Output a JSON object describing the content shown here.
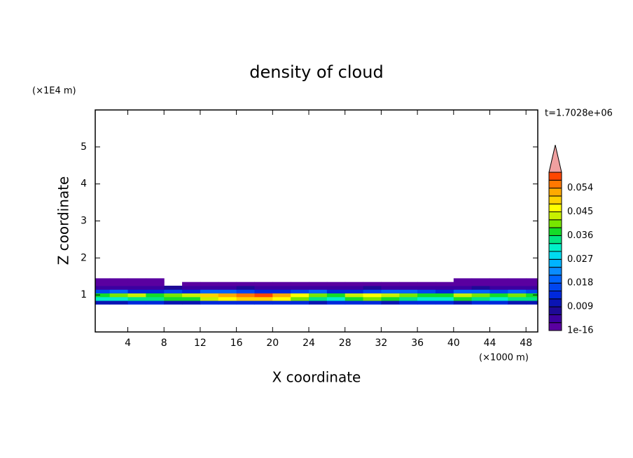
{
  "chart_data": {
    "type": "contour",
    "title": "density of cloud",
    "annotation": "t=1.7028e+06",
    "xlabel": "X coordinate",
    "ylabel": "Z coordinate",
    "x_unit": "(×1000 m)",
    "y_unit": "(×1E4 m)",
    "xlim": [
      0.4,
      49.3
    ],
    "ylim": [
      0,
      6
    ],
    "xticks": [
      4,
      8,
      12,
      16,
      20,
      24,
      28,
      32,
      36,
      40,
      44,
      48
    ],
    "yticks": [
      1,
      2,
      3,
      4,
      5
    ],
    "x": [
      1,
      3,
      5,
      7,
      9,
      11,
      13,
      15,
      17,
      19,
      21,
      23,
      25,
      27,
      29,
      31,
      33,
      35,
      37,
      39,
      41,
      43,
      45,
      47,
      49
    ],
    "z": [
      0.8,
      0.9,
      1.0,
      1.1,
      1.2,
      1.3,
      1.4
    ],
    "field": [
      [
        0.01,
        0.011,
        0.012,
        0.012,
        0.011,
        0.01,
        0.012,
        0.013,
        0.014,
        0.013,
        0.012,
        0.012,
        0.011,
        0.012,
        0.013,
        0.012,
        0.011,
        0.012,
        0.013,
        0.012,
        0.011,
        0.012,
        0.012,
        0.011,
        0.01
      ],
      [
        0.03,
        0.032,
        0.035,
        0.033,
        0.036,
        0.038,
        0.042,
        0.045,
        0.048,
        0.05,
        0.046,
        0.04,
        0.034,
        0.03,
        0.036,
        0.04,
        0.038,
        0.034,
        0.03,
        0.032,
        0.036,
        0.034,
        0.032,
        0.035,
        0.033
      ],
      [
        0.036,
        0.04,
        0.042,
        0.038,
        0.04,
        0.044,
        0.048,
        0.052,
        0.056,
        0.058,
        0.052,
        0.046,
        0.04,
        0.038,
        0.042,
        0.046,
        0.044,
        0.04,
        0.036,
        0.038,
        0.042,
        0.04,
        0.038,
        0.04,
        0.036
      ],
      [
        0.015,
        0.018,
        0.014,
        0.012,
        0.016,
        0.014,
        0.018,
        0.02,
        0.016,
        0.014,
        0.012,
        0.015,
        0.018,
        0.014,
        0.012,
        0.016,
        0.018,
        0.02,
        0.016,
        0.014,
        0.018,
        0.02,
        0.016,
        0.018,
        0.015
      ],
      [
        0.004,
        0.005,
        0.003,
        0.004,
        0.006,
        0.003,
        0.004,
        0.005,
        0.006,
        0.004,
        0.003,
        0.005,
        0.004,
        0.003,
        0.004,
        0.006,
        0.005,
        0.004,
        0.003,
        0.005,
        0.004,
        0.006,
        0.005,
        0.004,
        0.005
      ],
      [
        0.001,
        0.002,
        0.001,
        0.0005,
        0,
        0.001,
        0.001,
        0.002,
        0.001,
        0.001,
        0.0005,
        0.001,
        0.001,
        0.001,
        0.002,
        0.001,
        0.001,
        0.001,
        0.0005,
        0.001,
        0.001,
        0.002,
        0.001,
        0.001,
        0.001
      ],
      [
        0.001,
        0.001,
        0.001,
        0.0005,
        0,
        0,
        0,
        0,
        0,
        0,
        0,
        0,
        0,
        0,
        0,
        0,
        0,
        0,
        0,
        0,
        0.001,
        0.001,
        0.001,
        0.001,
        0.001
      ]
    ],
    "levels": [
      1e-16,
      0.003,
      0.006,
      0.009,
      0.012,
      0.015,
      0.018,
      0.021,
      0.024,
      0.027,
      0.03,
      0.033,
      0.036,
      0.039,
      0.042,
      0.045,
      0.048,
      0.051,
      0.054,
      0.057,
      0.06
    ],
    "colors": [
      "#5a00a0",
      "#3c00a0",
      "#1e0a96",
      "#0a14b4",
      "#0028dc",
      "#0046f0",
      "#0064ff",
      "#0a8cff",
      "#00b4ff",
      "#00dcf0",
      "#00f0c8",
      "#00e682",
      "#14dc28",
      "#78e600",
      "#c8f000",
      "#ffff00",
      "#ffd200",
      "#ffaa00",
      "#ff7800",
      "#ff4600",
      "#f0a0a0"
    ],
    "colorbar_ticks": [
      {
        "value": 1e-16,
        "label": "1e-16"
      },
      0.009,
      0.018,
      0.027,
      0.036,
      0.045,
      0.054
    ]
  }
}
